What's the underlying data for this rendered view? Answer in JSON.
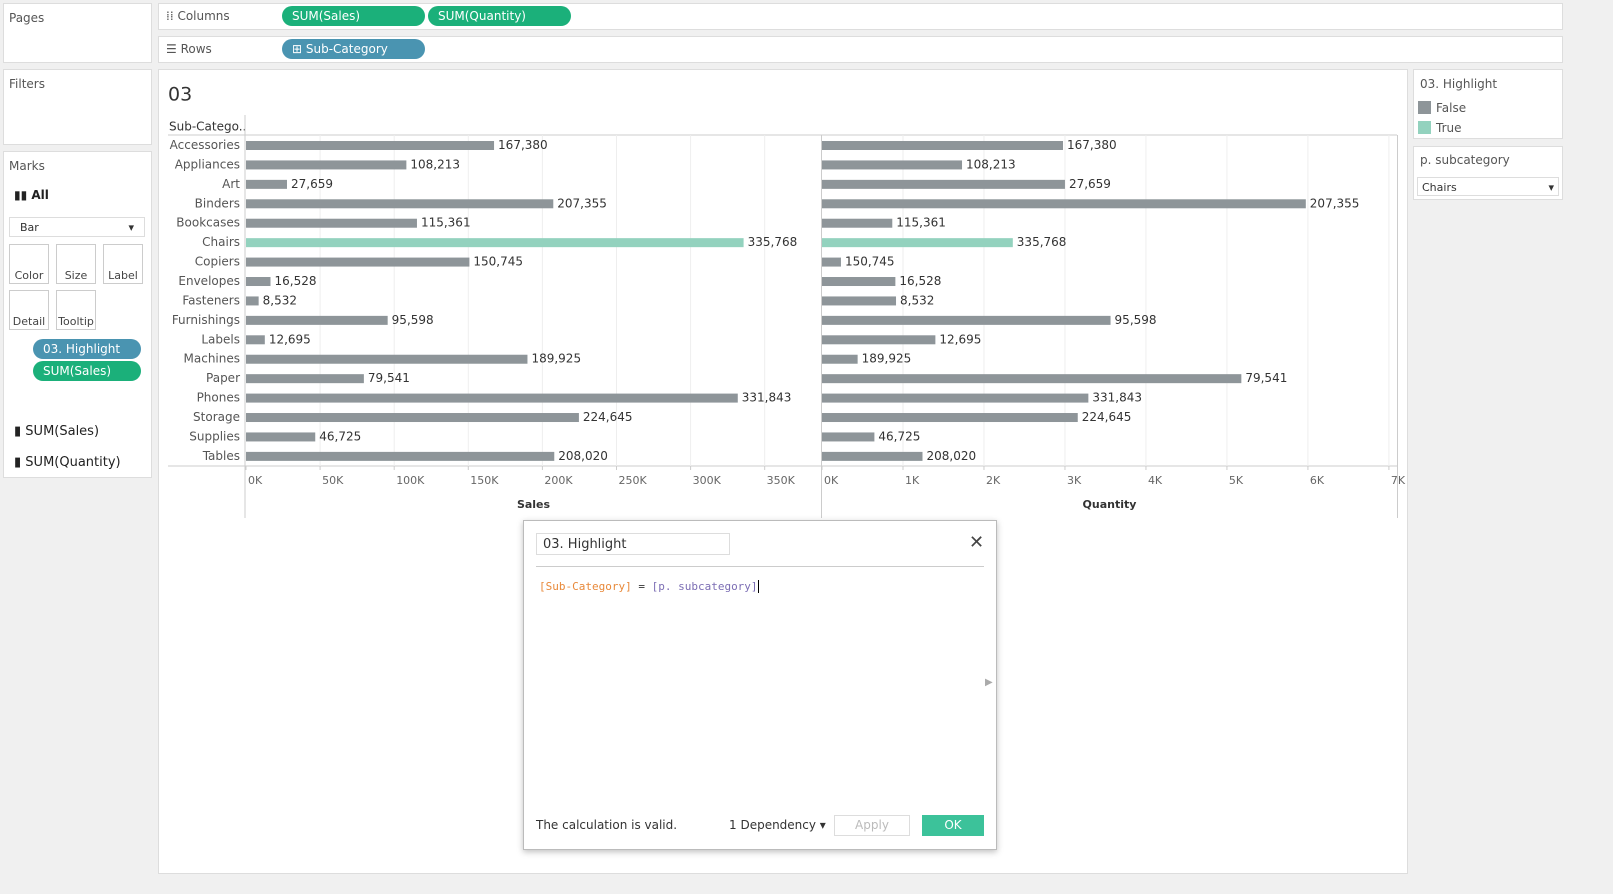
{
  "shelves": {
    "columns_label": "Columns",
    "columns": [
      "SUM(Sales)",
      "SUM(Quantity)"
    ],
    "rows_label": "Rows",
    "rows": [
      "Sub-Category"
    ]
  },
  "side": {
    "pages": "Pages",
    "filters": "Filters",
    "marks": "Marks",
    "all": "All",
    "mark_type": "Bar",
    "buttons": [
      "Color",
      "Size",
      "Label",
      "Detail",
      "Tooltip"
    ],
    "pills": [
      "03. Highlight",
      "SUM(Sales)"
    ],
    "measures": [
      "SUM(Sales)",
      "SUM(Quantity)"
    ]
  },
  "sheet_title": "03",
  "row_header": "Sub-Catego..",
  "categories": [
    "Accessories",
    "Appliances",
    "Art",
    "Binders",
    "Bookcases",
    "Chairs",
    "Copiers",
    "Envelopes",
    "Fasteners",
    "Furnishings",
    "Labels",
    "Machines",
    "Paper",
    "Phones",
    "Storage",
    "Supplies",
    "Tables"
  ],
  "views": [
    {
      "type": "bar",
      "x_label": "Sales",
      "values": [
        167380,
        108213,
        27659,
        207355,
        115361,
        335768,
        150745,
        16528,
        8532,
        95598,
        12695,
        189925,
        79541,
        331843,
        224645,
        46725,
        208020
      ],
      "value_labels": [
        "167,380",
        "108,213",
        "27,659",
        "207,355",
        "115,361",
        "335,768",
        "150,745",
        "16,528",
        "8,532",
        "95,598",
        "12,695",
        "189,925",
        "79,541",
        "331,843",
        "224,645",
        "46,725",
        "208,020"
      ],
      "xlim": [
        0,
        388000
      ],
      "xticks": [
        {
          "value": 0,
          "label": "0K"
        },
        {
          "value": 50000,
          "label": "50K"
        },
        {
          "value": 100000,
          "label": "100K"
        },
        {
          "value": 150000,
          "label": "150K"
        },
        {
          "value": 200000,
          "label": "200K"
        },
        {
          "value": 250000,
          "label": "250K"
        },
        {
          "value": 300000,
          "label": "300K"
        },
        {
          "value": 350000,
          "label": "350K"
        }
      ]
    },
    {
      "type": "bar",
      "x_label": "Quantity",
      "values": [
        2976,
        1729,
        3000,
        5974,
        868,
        2356,
        234,
        906,
        914,
        3563,
        1400,
        440,
        5178,
        3289,
        3158,
        647,
        1241
      ],
      "xlim": [
        0,
        7100
      ],
      "xticks": [
        {
          "value": 0,
          "label": "0K"
        },
        {
          "value": 1000,
          "label": "1K"
        },
        {
          "value": 2000,
          "label": "2K"
        },
        {
          "value": 3000,
          "label": "3K"
        },
        {
          "value": 4000,
          "label": "4K"
        },
        {
          "value": 5000,
          "label": "5K"
        },
        {
          "value": 6000,
          "label": "6K"
        },
        {
          "value": 7000,
          "label": "7K"
        }
      ]
    }
  ],
  "legend": {
    "title": "03. Highlight",
    "items": [
      {
        "name": "False",
        "color": "#8e9599"
      },
      {
        "name": "True",
        "color": "#93d2be"
      }
    ]
  },
  "parameter": {
    "title": "p. subcategory",
    "value": "Chairs"
  },
  "dialog": {
    "name": "03. Highlight",
    "formula_field": "[Sub-Category]",
    "formula_op": "=",
    "formula_param": "[p. subcategory]",
    "status": "The calculation is valid.",
    "dependency": "1 Dependency",
    "apply": "Apply",
    "ok": "OK"
  }
}
